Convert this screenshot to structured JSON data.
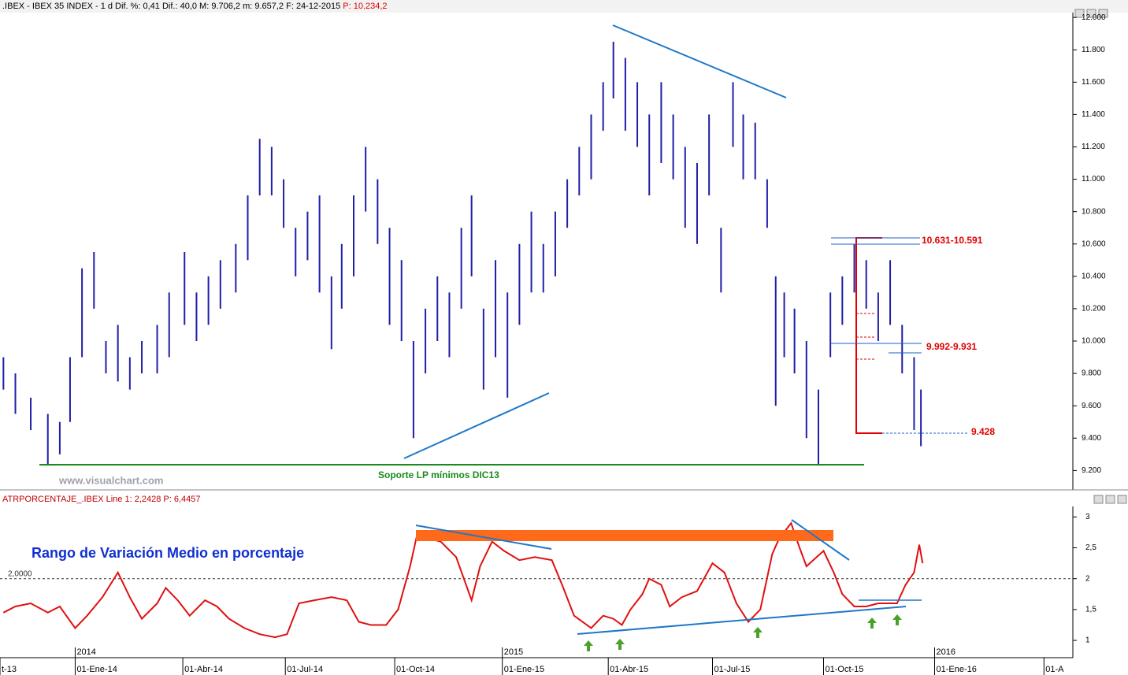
{
  "header": {
    "text": ".IBEX - IBEX 35 INDEX - 1 d Dif. %: 0,41 Dif.: 40,0 M: 9.706,2 m: 9.657,2 F: 24-12-2015",
    "price": "P: 10.234,2"
  },
  "watermark": "www.visualchart.com",
  "chart_data": [
    {
      "type": "range-bar",
      "color": "#1f1fa8",
      "x": [
        2,
        9,
        18,
        28,
        35,
        41,
        48,
        55,
        62,
        69,
        76,
        83,
        92,
        99,
        108,
        115,
        122,
        129,
        138,
        145,
        152,
        159,
        166,
        173,
        180,
        187,
        194,
        200,
        207,
        214,
        221,
        228,
        235,
        242,
        249,
        256,
        263,
        270,
        276,
        283,
        290,
        297,
        304,
        311,
        318,
        325,
        332,
        339,
        346,
        353,
        359,
        366,
        373,
        380,
        387,
        394,
        401,
        408,
        415,
        422,
        429,
        435,
        442,
        449,
        454,
        459,
        465,
        472,
        479,
        486,
        493,
        500,
        507,
        514,
        521,
        528,
        535,
        539
      ],
      "high": [
        9900,
        9800,
        9650,
        9550,
        9500,
        9900,
        10450,
        10550,
        10000,
        10100,
        9900,
        10000,
        10100,
        10300,
        10550,
        10300,
        10400,
        10500,
        10600,
        10900,
        11250,
        11200,
        11000,
        10700,
        10800,
        10900,
        10400,
        10600,
        10900,
        11200,
        11000,
        10700,
        10500,
        10000,
        10200,
        10400,
        10300,
        10700,
        10900,
        10200,
        10500,
        10300,
        10600,
        10800,
        10600,
        10800,
        11000,
        11200,
        11400,
        11600,
        11850,
        11750,
        11600,
        11400,
        11600,
        11400,
        11200,
        11100,
        11400,
        10700,
        11600,
        11400,
        11350,
        11000,
        10400,
        10300,
        10200,
        10000,
        9700,
        10300,
        10400,
        10600,
        10500,
        10300,
        10500,
        10100,
        9900,
        9700
      ],
      "low": [
        9700,
        9550,
        9450,
        9230,
        9300,
        9500,
        9900,
        10200,
        9800,
        9750,
        9700,
        9800,
        9800,
        9900,
        10100,
        10000,
        10100,
        10200,
        10300,
        10500,
        10900,
        10900,
        10700,
        10400,
        10500,
        10300,
        9950,
        10200,
        10400,
        10800,
        10600,
        10100,
        10000,
        9400,
        9800,
        10000,
        9900,
        10200,
        10400,
        9700,
        9900,
        9650,
        10100,
        10300,
        10300,
        10400,
        10700,
        10900,
        11000,
        11300,
        11500,
        11300,
        11200,
        10900,
        11100,
        11000,
        10700,
        10600,
        10900,
        10300,
        11200,
        11000,
        11000,
        10700,
        9600,
        9900,
        9800,
        9400,
        9230,
        9900,
        10100,
        10300,
        10200,
        10000,
        10100,
        9800,
        9450,
        9350
      ],
      "xlim": [
        0,
        627
      ],
      "ylim": [
        9080,
        12030
      ],
      "yticks": [
        {
          "value": 12000,
          "label": "12.000"
        },
        {
          "value": 11800,
          "label": "11.800"
        },
        {
          "value": 11600,
          "label": "11.600"
        },
        {
          "value": 11400,
          "label": "11.400"
        },
        {
          "value": 11200,
          "label": "11.200"
        },
        {
          "value": 11000,
          "label": "11.000"
        },
        {
          "value": 10800,
          "label": "10.800"
        },
        {
          "value": 10600,
          "label": "10.600"
        },
        {
          "value": 10400,
          "label": "10.400"
        },
        {
          "value": 10200,
          "label": "10.200"
        },
        {
          "value": 10000,
          "label": "10.000"
        },
        {
          "value": 9800,
          "label": "9.800"
        },
        {
          "value": 9600,
          "label": "9.600"
        },
        {
          "value": 9400,
          "label": "9.400"
        },
        {
          "value": 9200,
          "label": "9.200"
        }
      ],
      "annotations": [
        "10.631-10.591",
        "9.992-9.931",
        "9.428",
        "Soporte LP mínimos DIC13"
      ]
    },
    {
      "type": "line",
      "title": "ATRPORCENTAJE_.IBEX Line 1: 2,2428 P: 6,4457",
      "color": "#e01010",
      "x": [
        2,
        9,
        18,
        28,
        35,
        44,
        51,
        60,
        69,
        76,
        83,
        92,
        97,
        104,
        111,
        120,
        127,
        134,
        143,
        152,
        161,
        168,
        175,
        184,
        194,
        203,
        210,
        217,
        226,
        233,
        240,
        244,
        251,
        258,
        267,
        276,
        281,
        288,
        295,
        304,
        313,
        323,
        329,
        336,
        346,
        353,
        359,
        364,
        369,
        376,
        380,
        387,
        392,
        399,
        408,
        417,
        424,
        431,
        438,
        445,
        452,
        456,
        463,
        468,
        472,
        482,
        488,
        493,
        500,
        507,
        514,
        521,
        525,
        530,
        535,
        538,
        540
      ],
      "values": [
        1.45,
        1.55,
        1.6,
        1.45,
        1.55,
        1.2,
        1.4,
        1.7,
        2.1,
        1.7,
        1.35,
        1.6,
        1.85,
        1.65,
        1.4,
        1.65,
        1.55,
        1.35,
        1.2,
        1.1,
        1.05,
        1.1,
        1.6,
        1.65,
        1.7,
        1.65,
        1.3,
        1.25,
        1.25,
        1.5,
        2.2,
        2.7,
        2.65,
        2.6,
        2.35,
        1.65,
        2.2,
        2.6,
        2.45,
        2.3,
        2.35,
        2.3,
        1.9,
        1.4,
        1.2,
        1.4,
        1.35,
        1.25,
        1.5,
        1.75,
        2,
        1.9,
        1.55,
        1.7,
        1.8,
        2.25,
        2.1,
        1.6,
        1.3,
        1.5,
        2.4,
        2.65,
        2.9,
        2.5,
        2.2,
        2.45,
        2.1,
        1.75,
        1.55,
        1.55,
        1.6,
        1.6,
        1.6,
        1.9,
        2.1,
        2.55,
        2.25
      ],
      "xlim": [
        0,
        627
      ],
      "ylim": [
        0.72,
        3.17
      ],
      "yticks": [
        3,
        {
          "value": 2.5,
          "label": "2,5"
        },
        2,
        {
          "value": 1.5,
          "label": "1,5"
        },
        1
      ],
      "xticks": [
        {
          "value": 0,
          "label": "t-13"
        },
        {
          "value": 44,
          "label": "01-Ene-14"
        },
        {
          "value": 107,
          "label": "01-Abr-14"
        },
        {
          "value": 167,
          "label": "01-Jul-14"
        },
        {
          "value": 231,
          "label": "01-Oct-14"
        },
        {
          "value": 294,
          "label": "01-Ene-15"
        },
        {
          "value": 356,
          "label": "01-Abr-15"
        },
        {
          "value": 417,
          "label": "01-Jul-15"
        },
        {
          "value": 482,
          "label": "01-Oct-15"
        },
        {
          "value": 547,
          "label": "01-Ene-16"
        },
        {
          "value": 611,
          "label": "01-A"
        }
      ],
      "year_labels": [
        {
          "value": 44,
          "label": "2014"
        },
        {
          "value": 294,
          "label": "2015"
        },
        {
          "value": 547,
          "label": "2016"
        }
      ],
      "annotations": [
        "Rango de Variación Medio en porcentaje",
        "2,0000"
      ]
    }
  ]
}
